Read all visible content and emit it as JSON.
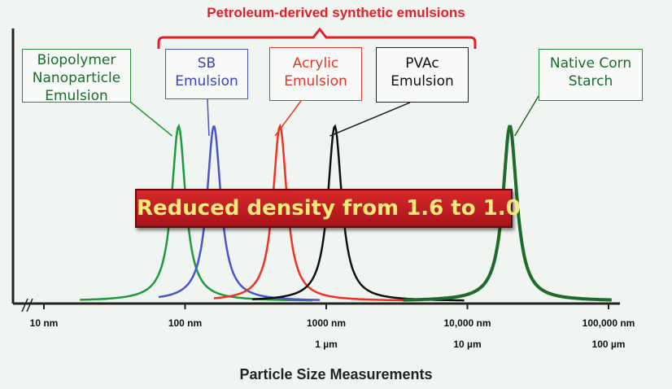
{
  "chart_data": {
    "type": "line",
    "title": "",
    "xlabel": "Particle Size Measurements",
    "ylabel": "",
    "x_scale": "log",
    "x_unit": "nm",
    "xlim": [
      10,
      100000
    ],
    "x_ticks": [
      {
        "value": 10,
        "label": "10 nm",
        "sub": ""
      },
      {
        "value": 100,
        "label": "100 nm",
        "sub": ""
      },
      {
        "value": 1000,
        "label": "1000 nm",
        "sub": "1 µm"
      },
      {
        "value": 10000,
        "label": "10,000 nm",
        "sub": "10 µm"
      },
      {
        "value": 100000,
        "label": "100,000 nm",
        "sub": "100 µm"
      }
    ],
    "grid": false,
    "group_label": "Petroleum-derived synthetic emulsions",
    "banner": "Reduced density from 1.6 to 1.0",
    "series": [
      {
        "name": "Biopolymer Nanoparticle Emulsion",
        "label_lines": [
          "Biopolymer",
          "Nanoparticle",
          "Emulsion"
        ],
        "peak_nm": 90,
        "color": "#1d9b3a",
        "x_range": [
          18,
          800
        ]
      },
      {
        "name": "SB Emulsion",
        "label_lines": [
          "SB",
          "Emulsion"
        ],
        "peak_nm": 160,
        "color": "#4b54c8",
        "x_range": [
          65,
          900
        ]
      },
      {
        "name": "Acrylic Emulsion",
        "label_lines": [
          "Acrylic",
          "Emulsion"
        ],
        "peak_nm": 470,
        "color": "#ee3322",
        "x_range": [
          160,
          4000
        ]
      },
      {
        "name": "PVAc Emulsion",
        "label_lines": [
          "PVAc",
          "Emulsion"
        ],
        "peak_nm": 1150,
        "color": "#111111",
        "x_range": [
          300,
          9500
        ]
      },
      {
        "name": "Native Corn Starch",
        "label_lines": [
          "Native Corn",
          "Starch"
        ],
        "peak_nm": 20000,
        "color": "#1f6b2a",
        "x_range": [
          3500,
          105000
        ]
      }
    ]
  }
}
